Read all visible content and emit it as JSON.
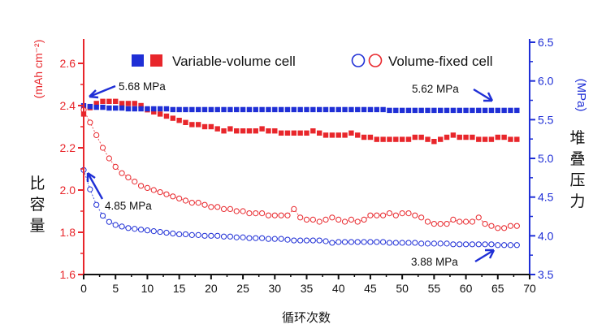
{
  "chart_data": {
    "type": "scatter",
    "xlabel": "循环次数",
    "ylabel_left": "(mAh cm⁻²)",
    "ylabel_right": "(MPa)",
    "ylabel_left_cn": "比容量",
    "ylabel_right_cn": "堆叠压力",
    "xlim": [
      0,
      70
    ],
    "ylim_left": [
      1.6,
      2.7
    ],
    "ylim_right": [
      3.5,
      6.5
    ],
    "xticks": [
      "0",
      "5",
      "10",
      "15",
      "20",
      "25",
      "30",
      "35",
      "40",
      "45",
      "50",
      "55",
      "60",
      "65",
      "70"
    ],
    "yticks_left": [
      "1.6",
      "1.8",
      "2.0",
      "2.2",
      "2.4",
      "2.6"
    ],
    "yticks_right": [
      "3.5",
      "4.0",
      "4.5",
      "5.0",
      "5.5",
      "6.0",
      "6.5"
    ],
    "legend": {
      "position": "top",
      "entries": [
        "Variable-volume cell",
        "Volume-fixed cell"
      ]
    },
    "colors": {
      "capacity": "#e8262b",
      "pressure": "#1f2fd6"
    },
    "series": [
      {
        "name": "Variable-volume cell",
        "quantity": "capacity",
        "axis": "left",
        "marker": "filled-square",
        "x": [
          0,
          1,
          2,
          3,
          4,
          5,
          6,
          7,
          8,
          9,
          10,
          11,
          12,
          13,
          14,
          15,
          16,
          17,
          18,
          19,
          20,
          21,
          22,
          23,
          24,
          25,
          26,
          27,
          28,
          29,
          30,
          31,
          32,
          33,
          34,
          35,
          36,
          37,
          38,
          39,
          40,
          41,
          42,
          43,
          44,
          45,
          46,
          47,
          48,
          49,
          50,
          51,
          52,
          53,
          54,
          55,
          56,
          57,
          58,
          59,
          60,
          61,
          62,
          63,
          64,
          65,
          66,
          67,
          68
        ],
        "values": [
          2.36,
          2.39,
          2.41,
          2.42,
          2.42,
          2.42,
          2.41,
          2.41,
          2.41,
          2.4,
          2.38,
          2.37,
          2.36,
          2.35,
          2.34,
          2.33,
          2.32,
          2.31,
          2.31,
          2.3,
          2.3,
          2.29,
          2.28,
          2.29,
          2.28,
          2.28,
          2.28,
          2.28,
          2.29,
          2.28,
          2.28,
          2.27,
          2.27,
          2.27,
          2.27,
          2.27,
          2.28,
          2.27,
          2.26,
          2.26,
          2.26,
          2.26,
          2.27,
          2.26,
          2.25,
          2.25,
          2.24,
          2.24,
          2.24,
          2.24,
          2.24,
          2.24,
          2.25,
          2.25,
          2.24,
          2.23,
          2.24,
          2.25,
          2.26,
          2.25,
          2.25,
          2.25,
          2.24,
          2.24,
          2.24,
          2.25,
          2.25,
          2.24,
          2.24
        ]
      },
      {
        "name": "Variable-volume cell",
        "quantity": "stack pressure",
        "axis": "right",
        "marker": "filled-square",
        "x": [
          0,
          1,
          2,
          3,
          4,
          5,
          6,
          7,
          8,
          9,
          10,
          11,
          12,
          13,
          14,
          15,
          16,
          17,
          18,
          19,
          20,
          21,
          22,
          23,
          24,
          25,
          26,
          27,
          28,
          29,
          30,
          31,
          32,
          33,
          34,
          35,
          36,
          37,
          38,
          39,
          40,
          41,
          42,
          43,
          44,
          45,
          46,
          47,
          48,
          49,
          50,
          51,
          52,
          53,
          54,
          55,
          56,
          57,
          58,
          59,
          60,
          61,
          62,
          63,
          64,
          65,
          66,
          67,
          68
        ],
        "values": [
          5.68,
          5.67,
          5.66,
          5.66,
          5.65,
          5.65,
          5.65,
          5.64,
          5.64,
          5.64,
          5.64,
          5.64,
          5.64,
          5.64,
          5.63,
          5.63,
          5.63,
          5.63,
          5.63,
          5.63,
          5.63,
          5.63,
          5.63,
          5.63,
          5.63,
          5.63,
          5.63,
          5.63,
          5.63,
          5.63,
          5.63,
          5.63,
          5.63,
          5.63,
          5.63,
          5.63,
          5.63,
          5.63,
          5.63,
          5.63,
          5.63,
          5.63,
          5.63,
          5.63,
          5.63,
          5.63,
          5.63,
          5.63,
          5.62,
          5.62,
          5.62,
          5.62,
          5.62,
          5.62,
          5.62,
          5.62,
          5.62,
          5.62,
          5.62,
          5.62,
          5.62,
          5.62,
          5.62,
          5.62,
          5.62,
          5.62,
          5.62,
          5.62,
          5.62
        ]
      },
      {
        "name": "Volume-fixed cell",
        "quantity": "capacity",
        "axis": "left",
        "marker": "open-circle",
        "x": [
          0,
          1,
          2,
          3,
          4,
          5,
          6,
          7,
          8,
          9,
          10,
          11,
          12,
          13,
          14,
          15,
          16,
          17,
          18,
          19,
          20,
          21,
          22,
          23,
          24,
          25,
          26,
          27,
          28,
          29,
          30,
          31,
          32,
          33,
          34,
          35,
          36,
          37,
          38,
          39,
          40,
          41,
          42,
          43,
          44,
          45,
          46,
          47,
          48,
          49,
          50,
          51,
          52,
          53,
          54,
          55,
          56,
          57,
          58,
          59,
          60,
          61,
          62,
          63,
          64,
          65,
          66,
          67,
          68
        ],
        "values": [
          2.38,
          2.32,
          2.26,
          2.2,
          2.15,
          2.11,
          2.08,
          2.06,
          2.04,
          2.02,
          2.01,
          2.0,
          1.99,
          1.98,
          1.97,
          1.96,
          1.95,
          1.94,
          1.94,
          1.93,
          1.92,
          1.92,
          1.91,
          1.91,
          1.9,
          1.9,
          1.89,
          1.89,
          1.89,
          1.88,
          1.88,
          1.88,
          1.88,
          1.91,
          1.87,
          1.86,
          1.86,
          1.85,
          1.86,
          1.87,
          1.86,
          1.85,
          1.86,
          1.85,
          1.86,
          1.88,
          1.88,
          1.88,
          1.89,
          1.88,
          1.89,
          1.89,
          1.88,
          1.87,
          1.85,
          1.84,
          1.84,
          1.84,
          1.86,
          1.85,
          1.85,
          1.85,
          1.87,
          1.84,
          1.83,
          1.82,
          1.82,
          1.83,
          1.83
        ]
      },
      {
        "name": "Volume-fixed cell",
        "quantity": "stack pressure",
        "axis": "right",
        "marker": "open-circle",
        "x": [
          0,
          1,
          2,
          3,
          4,
          5,
          6,
          7,
          8,
          9,
          10,
          11,
          12,
          13,
          14,
          15,
          16,
          17,
          18,
          19,
          20,
          21,
          22,
          23,
          24,
          25,
          26,
          27,
          28,
          29,
          30,
          31,
          32,
          33,
          34,
          35,
          36,
          37,
          38,
          39,
          40,
          41,
          42,
          43,
          44,
          45,
          46,
          47,
          48,
          49,
          50,
          51,
          52,
          53,
          54,
          55,
          56,
          57,
          58,
          59,
          60,
          61,
          62,
          63,
          64,
          65,
          66,
          67,
          68
        ],
        "values": [
          4.85,
          4.6,
          4.4,
          4.26,
          4.18,
          4.14,
          4.12,
          4.1,
          4.09,
          4.08,
          4.07,
          4.06,
          4.05,
          4.04,
          4.03,
          4.02,
          4.02,
          4.01,
          4.01,
          4.0,
          4.0,
          4.0,
          3.99,
          3.99,
          3.98,
          3.98,
          3.97,
          3.97,
          3.97,
          3.96,
          3.96,
          3.96,
          3.95,
          3.94,
          3.94,
          3.94,
          3.94,
          3.94,
          3.93,
          3.91,
          3.92,
          3.92,
          3.92,
          3.92,
          3.92,
          3.92,
          3.92,
          3.92,
          3.91,
          3.91,
          3.91,
          3.91,
          3.91,
          3.9,
          3.9,
          3.9,
          3.9,
          3.9,
          3.89,
          3.89,
          3.89,
          3.89,
          3.89,
          3.89,
          3.89,
          3.88,
          3.88,
          3.88,
          3.88
        ]
      }
    ],
    "annotations": [
      {
        "text": "5.68 MPa"
      },
      {
        "text": "5.62 MPa"
      },
      {
        "text": "4.85 MPa"
      },
      {
        "text": "3.88 MPa"
      }
    ]
  }
}
